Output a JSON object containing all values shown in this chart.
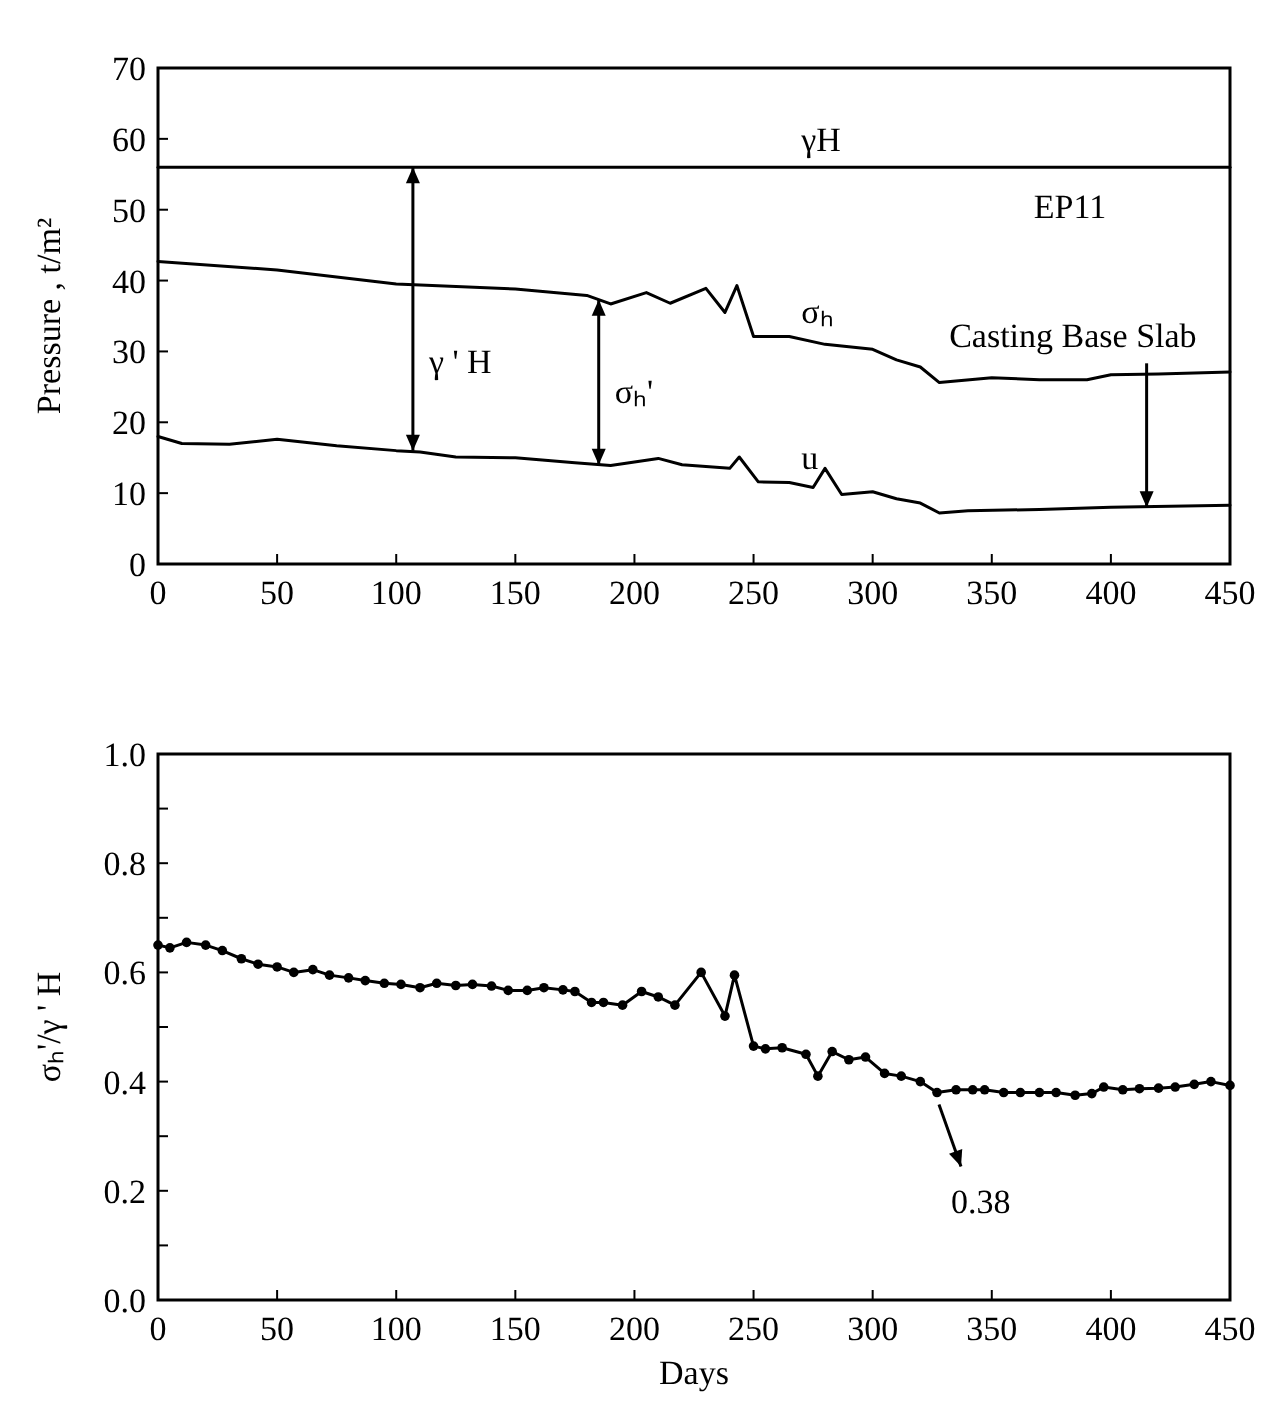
{
  "chart_data": [
    {
      "type": "line",
      "ylabel": "Pressure , t/m²",
      "xlim": [
        0,
        450
      ],
      "xticks": [
        0,
        50,
        100,
        150,
        200,
        250,
        300,
        350,
        400,
        450
      ],
      "ylim": [
        0,
        70
      ],
      "yticks": [
        0,
        10,
        20,
        30,
        40,
        50,
        60,
        70
      ],
      "grid": false,
      "legend": false,
      "marker": "none",
      "line_style": "solid",
      "series": [
        {
          "name": "γH",
          "color": "#000000",
          "x": [
            0,
            450
          ],
          "values": [
            56,
            56
          ]
        },
        {
          "name": "σₕ",
          "color": "#000000",
          "x": [
            0,
            50,
            100,
            150,
            180,
            190,
            205,
            215,
            230,
            238,
            243,
            250,
            265,
            280,
            300,
            310,
            320,
            328,
            350,
            370,
            390,
            400,
            420,
            450
          ],
          "values": [
            42.7,
            41.5,
            39.5,
            38.8,
            37.9,
            36.7,
            38.3,
            36.8,
            38.9,
            35.5,
            39.3,
            32.1,
            32.1,
            31,
            30.3,
            28.8,
            27.8,
            25.6,
            26.3,
            26,
            26,
            26.7,
            26.8,
            27.1
          ]
        },
        {
          "name": "u",
          "color": "#000000",
          "x": [
            0,
            10,
            30,
            50,
            75,
            100,
            110,
            125,
            150,
            175,
            190,
            210,
            220,
            240,
            244,
            252,
            265,
            275,
            280,
            287,
            300,
            310,
            320,
            328,
            340,
            370,
            400,
            450
          ],
          "values": [
            18,
            17,
            16.9,
            17.6,
            16.7,
            16,
            15.8,
            15.1,
            15,
            14.3,
            13.9,
            14.9,
            14,
            13.5,
            15.1,
            11.6,
            11.5,
            10.8,
            13.5,
            9.8,
            10.2,
            9.2,
            8.6,
            7.2,
            7.5,
            7.7,
            8,
            8.3
          ]
        }
      ],
      "annotations": [
        "EP11",
        {
          "text": "γ ' H",
          "x": 107,
          "y": 16
        },
        {
          "text": "σₕ'",
          "x": 185,
          "y": 14
        },
        {
          "text": "Casting Base Slab",
          "x": 415,
          "y": 8
        }
      ]
    },
    {
      "type": "line",
      "xlabel": "Days",
      "ylabel": "σₕ'/γ ' H",
      "xlim": [
        0,
        450
      ],
      "xticks": [
        0,
        50,
        100,
        150,
        200,
        250,
        300,
        350,
        400,
        450
      ],
      "ylim": [
        0,
        1
      ],
      "yticks": [
        {
          "value": 0,
          "label": "0.0"
        },
        {
          "value": 0.1,
          "label": null
        },
        0.2,
        {
          "value": 0.3,
          "label": null
        },
        0.4,
        {
          "value": 0.5,
          "label": null
        },
        0.6,
        {
          "value": 0.7,
          "label": null
        },
        0.8,
        {
          "value": 0.9,
          "label": null
        },
        {
          "value": 1,
          "label": "1.0"
        }
      ],
      "grid": false,
      "legend": false,
      "marker": "circle",
      "line_style": "solid",
      "series": [
        {
          "color": "#000000",
          "x": [
            0,
            5,
            12,
            20,
            27,
            35,
            42,
            50,
            57,
            65,
            72,
            80,
            87,
            95,
            102,
            110,
            117,
            125,
            132,
            140,
            147,
            155,
            162,
            170,
            175,
            182,
            187,
            195,
            203,
            210,
            217,
            228,
            238,
            242,
            250,
            255,
            262,
            272,
            277,
            283,
            290,
            297,
            305,
            312,
            320,
            327,
            335,
            342,
            347,
            355,
            362,
            370,
            377,
            385,
            392,
            397,
            405,
            412,
            420,
            427,
            435,
            442,
            450
          ],
          "values": [
            0.65,
            0.645,
            0.655,
            0.65,
            0.64,
            0.625,
            0.615,
            0.61,
            0.6,
            0.605,
            0.595,
            0.59,
            0.585,
            0.58,
            0.578,
            0.572,
            0.58,
            0.576,
            0.578,
            0.575,
            0.567,
            0.567,
            0.572,
            0.568,
            0.565,
            0.545,
            0.545,
            0.54,
            0.565,
            0.555,
            0.54,
            0.6,
            0.52,
            0.595,
            0.465,
            0.46,
            0.462,
            0.45,
            0.41,
            0.455,
            0.44,
            0.445,
            0.415,
            0.41,
            0.4,
            0.38,
            0.385,
            0.385,
            0.385,
            0.38,
            0.38,
            0.38,
            0.38,
            0.375,
            0.378,
            0.39,
            0.385,
            0.387,
            0.388,
            0.39,
            0.395,
            0.4,
            0.393
          ]
        }
      ],
      "annotations": [
        {
          "text": "0.38",
          "x": 327,
          "y": 0.38
        }
      ]
    }
  ]
}
